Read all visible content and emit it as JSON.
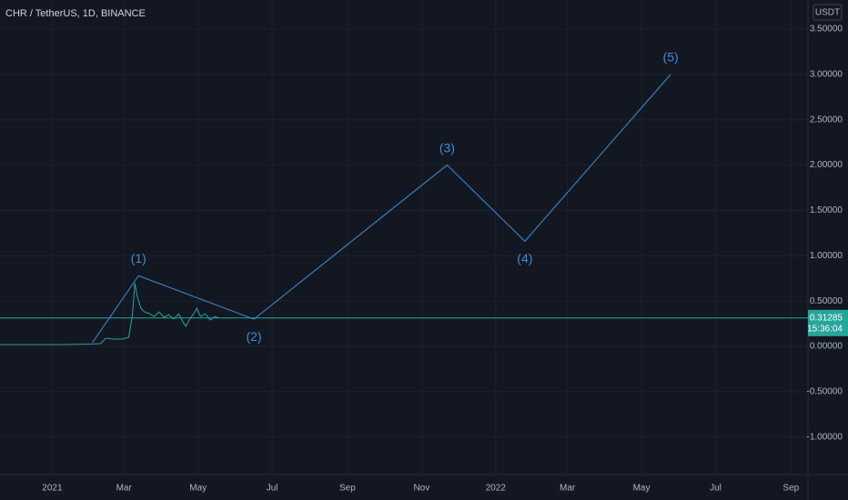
{
  "chart_data": {
    "type": "line",
    "title": "CHR / TetherUS, 1D, BINANCE",
    "currency": "USDT",
    "x": [
      -43,
      -30,
      -10,
      10,
      30,
      40,
      44,
      50,
      58,
      63,
      66,
      68,
      70,
      73,
      76,
      80,
      84,
      88,
      92,
      96,
      100,
      104,
      108,
      110,
      113,
      116,
      119,
      122,
      126,
      130,
      134,
      137
    ],
    "values": [
      0.02,
      0.02,
      0.02,
      0.02,
      0.025,
      0.03,
      0.09,
      0.08,
      0.08,
      0.1,
      0.35,
      0.7,
      0.55,
      0.42,
      0.38,
      0.36,
      0.33,
      0.38,
      0.32,
      0.35,
      0.3,
      0.36,
      0.26,
      0.22,
      0.3,
      0.35,
      0.42,
      0.33,
      0.36,
      0.29,
      0.33,
      0.31285
    ],
    "color": "#26a69a",
    "xlim": [
      -43,
      622
    ],
    "xticks": [
      {
        "value": 0,
        "label": "2021"
      },
      {
        "value": 59,
        "label": "Mar"
      },
      {
        "value": 120,
        "label": "May"
      },
      {
        "value": 181,
        "label": "Jul"
      },
      {
        "value": 243,
        "label": "Sep"
      },
      {
        "value": 304,
        "label": "Nov"
      },
      {
        "value": 365,
        "label": "2022"
      },
      {
        "value": 424,
        "label": "Mar"
      },
      {
        "value": 485,
        "label": "May"
      },
      {
        "value": 546,
        "label": "Jul"
      },
      {
        "value": 608,
        "label": "Sep"
      }
    ],
    "ylim": [
      -1.414,
      3.821
    ],
    "yticks": [
      {
        "value": 3.5,
        "label": "3.50000"
      },
      {
        "value": 3,
        "label": "3.00000"
      },
      {
        "value": 2.5,
        "label": "2.50000"
      },
      {
        "value": 2,
        "label": "2.00000"
      },
      {
        "value": 1.5,
        "label": "1.50000"
      },
      {
        "value": 1,
        "label": "1.00000"
      },
      {
        "value": 0.5,
        "label": "0.50000"
      },
      {
        "value": 0,
        "label": "0.00000"
      },
      {
        "value": -0.5,
        "label": "-0.50000"
      },
      {
        "value": -1,
        "label": "-1.00000"
      }
    ],
    "grid": true,
    "last_price": {
      "value": 0.31285,
      "label": "0.31285"
    },
    "countdown": "15:36:04",
    "wave_color": "#3d8fd6",
    "wave_start": {
      "x": 33,
      "y": 0.04
    },
    "waves": [
      {
        "label": "(1)",
        "x": 71,
        "y": 0.78,
        "position": "above"
      },
      {
        "label": "(2)",
        "x": 166,
        "y": 0.3,
        "position": "below"
      },
      {
        "label": "(3)",
        "x": 325,
        "y": 2.0,
        "position": "above"
      },
      {
        "label": "(4)",
        "x": 389,
        "y": 1.16,
        "position": "below"
      },
      {
        "label": "(5)",
        "x": 509,
        "y": 3.0,
        "position": "above"
      }
    ]
  }
}
